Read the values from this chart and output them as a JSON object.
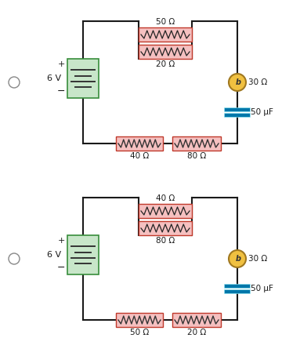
{
  "bg_color": "#ffffff",
  "wire_color": "#1a1a1a",
  "resistor_fill": "#f5c0c0",
  "resistor_edge": "#c0392b",
  "battery_fill": "#c8e6c9",
  "battery_edge": "#388e3c",
  "cap_fill": "#80d8e8",
  "cap_edge": "#0077aa",
  "bulb_fill": "#f0c040",
  "bulb_edge": "#a07820",
  "text_color": "#1a1a1a",
  "radio_color": "#888888",
  "circuit1": {
    "res_top1": "50 Ω",
    "res_top2": "20 Ω",
    "res_bot1": "40 Ω",
    "res_bot2": "80 Ω",
    "bulb_label": "30 Ω",
    "cap_label": "50 μF",
    "batt_label": "6 V"
  },
  "circuit2": {
    "res_top1": "40 Ω",
    "res_top2": "80 Ω",
    "res_bot1": "50 Ω",
    "res_bot2": "20 Ω",
    "bulb_label": "30 Ω",
    "cap_label": "50 μF",
    "batt_label": "6 V"
  }
}
